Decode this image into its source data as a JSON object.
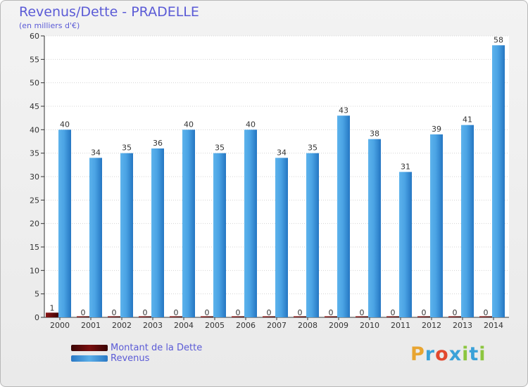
{
  "title": "Revenus/Dette - PRADELLE",
  "subtitle": "(en milliers d'€)",
  "logo": {
    "text": "Proxiti",
    "colors": [
      "#e8a531",
      "#3aa1d8",
      "#e2482e",
      "#3aa1d8",
      "#8cc63f",
      "#3aa1d8",
      "#8cc63f"
    ]
  },
  "chart_data": {
    "type": "bar",
    "categories": [
      "2000",
      "2001",
      "2002",
      "2003",
      "2004",
      "2005",
      "2006",
      "2007",
      "2008",
      "2009",
      "2010",
      "2011",
      "2012",
      "2013",
      "2014"
    ],
    "series": [
      {
        "name": "Montant de la Dette",
        "color": "#6b0d0d",
        "values": [
          1,
          0,
          0,
          0,
          0,
          0,
          0,
          0,
          0,
          0,
          0,
          0,
          0,
          0,
          0
        ]
      },
      {
        "name": "Revenus",
        "color": "#3f95dc",
        "values": [
          40,
          34,
          35,
          36,
          40,
          35,
          40,
          34,
          35,
          43,
          38,
          31,
          39,
          41,
          58
        ]
      }
    ],
    "ylim": [
      0,
      60
    ],
    "yticks": [
      0,
      5,
      10,
      15,
      20,
      25,
      30,
      35,
      40,
      45,
      50,
      55,
      60
    ],
    "grid": true,
    "legend": "bottom-left"
  }
}
